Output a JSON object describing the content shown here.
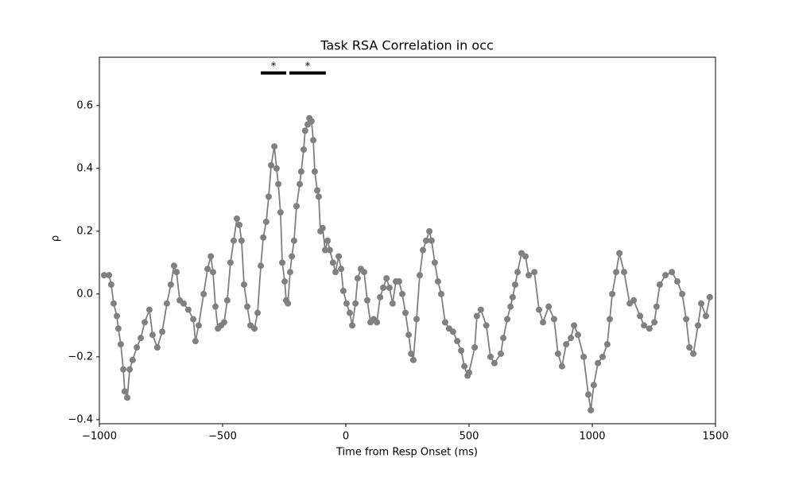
{
  "chart_data": {
    "type": "line",
    "title": "Task RSA Correlation in occ",
    "x_label": "Time from Resp Onset (ms)",
    "y_label": "ρ",
    "color": "#808080",
    "x": [
      -981,
      -961,
      -952,
      -942,
      -929,
      -923,
      -913,
      -903,
      -897,
      -887,
      -877,
      -865,
      -848,
      -832,
      -816,
      -797,
      -784,
      -765,
      -745,
      -726,
      -710,
      -697,
      -687,
      -674,
      -658,
      -639,
      -619,
      -610,
      -597,
      -577,
      -561,
      -548,
      -539,
      -529,
      -519,
      -506,
      -494,
      -481,
      -468,
      -455,
      -442,
      -432,
      -423,
      -413,
      -400,
      -387,
      -371,
      -358,
      -345,
      -335,
      -323,
      -313,
      -303,
      -290,
      -281,
      -274,
      -265,
      -258,
      -248,
      -242,
      -235,
      -226,
      -219,
      -210,
      -200,
      -187,
      -181,
      -171,
      -165,
      -155,
      -148,
      -139,
      -132,
      -126,
      -116,
      -110,
      -103,
      -94,
      -84,
      -74,
      -65,
      -52,
      -42,
      -29,
      -19,
      -10,
      3,
      16,
      26,
      39,
      48,
      61,
      74,
      87,
      100,
      113,
      126,
      139,
      152,
      165,
      177,
      190,
      203,
      216,
      229,
      242,
      255,
      265,
      274,
      287,
      300,
      313,
      326,
      339,
      348,
      361,
      374,
      387,
      403,
      419,
      435,
      452,
      468,
      481,
      494,
      500,
      523,
      532,
      548,
      570,
      587,
      603,
      629,
      639,
      655,
      668,
      677,
      687,
      697,
      713,
      729,
      742,
      765,
      784,
      800,
      823,
      845,
      861,
      877,
      894,
      913,
      926,
      942,
      965,
      984,
      994,
      1006,
      1023,
      1042,
      1061,
      1071,
      1081,
      1097,
      1110,
      1129,
      1152,
      1168,
      1194,
      1210,
      1232,
      1252,
      1261,
      1274,
      1297,
      1323,
      1345,
      1365,
      1381,
      1394,
      1410,
      1429,
      1442,
      1461,
      1477
    ],
    "values": [
      0.06,
      0.06,
      0.03,
      -0.03,
      -0.07,
      -0.11,
      -0.16,
      -0.24,
      -0.31,
      -0.33,
      -0.24,
      -0.21,
      -0.17,
      -0.14,
      -0.09,
      -0.05,
      -0.13,
      -0.17,
      -0.12,
      -0.03,
      0.03,
      0.09,
      0.07,
      -0.02,
      -0.03,
      -0.05,
      -0.08,
      -0.15,
      -0.1,
      0.0,
      0.08,
      0.12,
      0.07,
      -0.04,
      -0.11,
      -0.1,
      -0.09,
      -0.02,
      0.1,
      0.17,
      0.24,
      0.22,
      0.17,
      0.03,
      -0.04,
      -0.1,
      -0.11,
      -0.06,
      0.09,
      0.18,
      0.23,
      0.31,
      0.41,
      0.47,
      0.4,
      0.35,
      0.26,
      0.1,
      0.04,
      -0.02,
      -0.03,
      0.07,
      0.12,
      0.17,
      0.28,
      0.35,
      0.39,
      0.46,
      0.52,
      0.54,
      0.56,
      0.55,
      0.49,
      0.39,
      0.33,
      0.31,
      0.2,
      0.21,
      0.14,
      0.17,
      0.14,
      0.1,
      0.07,
      0.12,
      0.08,
      0.01,
      -0.03,
      -0.06,
      -0.1,
      -0.03,
      0.05,
      0.08,
      0.07,
      -0.02,
      -0.09,
      -0.08,
      -0.09,
      -0.01,
      0.02,
      0.05,
      0.02,
      -0.03,
      0.04,
      0.04,
      0.0,
      -0.06,
      -0.13,
      -0.19,
      -0.21,
      -0.08,
      0.06,
      0.14,
      0.17,
      0.2,
      0.17,
      0.1,
      0.04,
      0.0,
      -0.09,
      -0.11,
      -0.12,
      -0.15,
      -0.18,
      -0.23,
      -0.26,
      -0.25,
      -0.17,
      -0.07,
      -0.05,
      -0.1,
      -0.2,
      -0.22,
      -0.19,
      -0.14,
      -0.08,
      -0.04,
      -0.01,
      0.03,
      0.07,
      0.13,
      0.12,
      0.06,
      0.07,
      -0.05,
      -0.09,
      -0.04,
      -0.08,
      -0.19,
      -0.23,
      -0.16,
      -0.14,
      -0.1,
      -0.13,
      -0.2,
      -0.32,
      -0.37,
      -0.29,
      -0.22,
      -0.2,
      -0.16,
      -0.08,
      0.0,
      0.07,
      0.13,
      0.07,
      -0.03,
      -0.02,
      -0.07,
      -0.1,
      -0.11,
      -0.09,
      -0.04,
      0.03,
      0.06,
      0.07,
      0.04,
      0.0,
      -0.08,
      -0.17,
      -0.19,
      -0.1,
      -0.03,
      -0.07,
      -0.01
    ],
    "annotations": [
      {
        "label": "*",
        "x": [
          -345,
          -242
        ],
        "y": 0.704
      },
      {
        "label": "*",
        "x": [
          -229,
          -81
        ],
        "y": 0.704
      }
    ],
    "xlim": [
      -1000,
      1500
    ],
    "xticks": [
      {
        "value": -1000,
        "label": "−1000"
      },
      {
        "value": -500,
        "label": "−500"
      },
      0,
      500,
      1000,
      1500
    ],
    "ylim": [
      -0.413,
      0.754
    ],
    "yticks": [
      {
        "value": -0.4,
        "label": "−0.4"
      },
      {
        "value": -0.2,
        "label": "−0.2"
      },
      {
        "value": 0,
        "label": "0.0"
      },
      0.2,
      0.4,
      0.6
    ]
  }
}
